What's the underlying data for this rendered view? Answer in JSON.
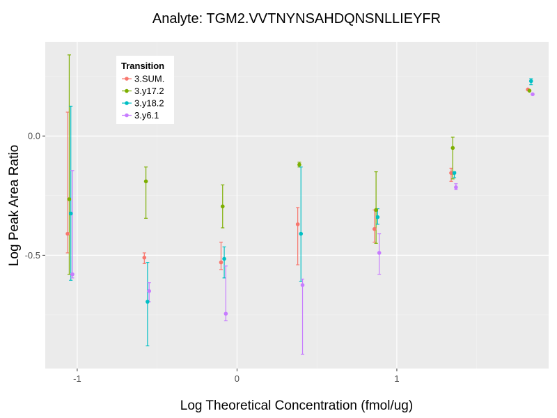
{
  "chart_data": {
    "type": "scatter",
    "title": "Analyte: TGM2.VVTNYNSAHDQNSNLLIEYFR",
    "xlabel": "Log Theoretical Concentration (fmol/ug)",
    "ylabel": "Log Peak Area Ratio",
    "xlim": [
      -1.2,
      1.95
    ],
    "ylim": [
      -0.975,
      0.395
    ],
    "x_ticks": [
      -1,
      0,
      1
    ],
    "x_tick_labels": [
      "-1",
      "0",
      "1"
    ],
    "y_ticks": [
      0,
      -0.5
    ],
    "y_tick_labels": [
      "0.0",
      "-0.5"
    ],
    "grid": true,
    "legend": {
      "title": "Transition",
      "position": "top-left",
      "entries": [
        "3.SUM.",
        "3.y17.2",
        "3.y18.2",
        "3.y6.1"
      ]
    },
    "series": [
      {
        "name": "3.SUM.",
        "color": "#F8766D",
        "points": [
          {
            "x": -1.06,
            "y": -0.41,
            "ymin": -0.49,
            "ymax": 0.1
          },
          {
            "x": -0.58,
            "y": -0.51,
            "ymin": -0.535,
            "ymax": -0.49
          },
          {
            "x": -0.1,
            "y": -0.53,
            "ymin": -0.56,
            "ymax": -0.445
          },
          {
            "x": 0.38,
            "y": -0.37,
            "ymin": -0.54,
            "ymax": -0.3
          },
          {
            "x": 0.86,
            "y": -0.39,
            "ymin": -0.445,
            "ymax": -0.31
          },
          {
            "x": 1.34,
            "y": -0.155,
            "ymin": -0.19,
            "ymax": -0.135
          },
          {
            "x": 1.82,
            "y": 0.195,
            "ymin": 0.195,
            "ymax": 0.195
          }
        ]
      },
      {
        "name": "3.y17.2",
        "color": "#7CAE00",
        "points": [
          {
            "x": -1.05,
            "y": -0.265,
            "ymin": -0.58,
            "ymax": 0.34
          },
          {
            "x": -0.57,
            "y": -0.19,
            "ymin": -0.345,
            "ymax": -0.13
          },
          {
            "x": -0.09,
            "y": -0.295,
            "ymin": -0.385,
            "ymax": -0.205
          },
          {
            "x": 0.39,
            "y": -0.12,
            "ymin": -0.13,
            "ymax": -0.11
          },
          {
            "x": 0.87,
            "y": -0.31,
            "ymin": -0.45,
            "ymax": -0.15
          },
          {
            "x": 1.35,
            "y": -0.05,
            "ymin": -0.18,
            "ymax": -0.005
          },
          {
            "x": 1.83,
            "y": 0.19,
            "ymin": 0.19,
            "ymax": 0.19
          }
        ]
      },
      {
        "name": "3.y18.2",
        "color": "#00BFC4",
        "points": [
          {
            "x": -1.04,
            "y": -0.325,
            "ymin": -0.605,
            "ymax": 0.125
          },
          {
            "x": -0.56,
            "y": -0.695,
            "ymin": -0.88,
            "ymax": -0.53
          },
          {
            "x": -0.08,
            "y": -0.515,
            "ymin": -0.595,
            "ymax": -0.465
          },
          {
            "x": 0.4,
            "y": -0.41,
            "ymin": -0.61,
            "ymax": -0.13
          },
          {
            "x": 0.88,
            "y": -0.34,
            "ymin": -0.37,
            "ymax": -0.305
          },
          {
            "x": 1.36,
            "y": -0.155,
            "ymin": -0.175,
            "ymax": -0.15
          },
          {
            "x": 1.84,
            "y": 0.23,
            "ymin": 0.215,
            "ymax": 0.24
          }
        ]
      },
      {
        "name": "3.y6.1",
        "color": "#C77CFF",
        "points": [
          {
            "x": -1.03,
            "y": -0.58,
            "ymin": -0.595,
            "ymax": -0.145
          },
          {
            "x": -0.55,
            "y": -0.65,
            "ymin": -0.695,
            "ymax": -0.615
          },
          {
            "x": -0.07,
            "y": -0.745,
            "ymin": -0.775,
            "ymax": -0.545
          },
          {
            "x": 0.41,
            "y": -0.625,
            "ymin": -0.915,
            "ymax": -0.6
          },
          {
            "x": 0.89,
            "y": -0.49,
            "ymin": -0.58,
            "ymax": -0.41
          },
          {
            "x": 1.37,
            "y": -0.215,
            "ymin": -0.225,
            "ymax": -0.2
          },
          {
            "x": 1.85,
            "y": 0.175,
            "ymin": 0.175,
            "ymax": 0.175
          }
        ]
      }
    ]
  }
}
